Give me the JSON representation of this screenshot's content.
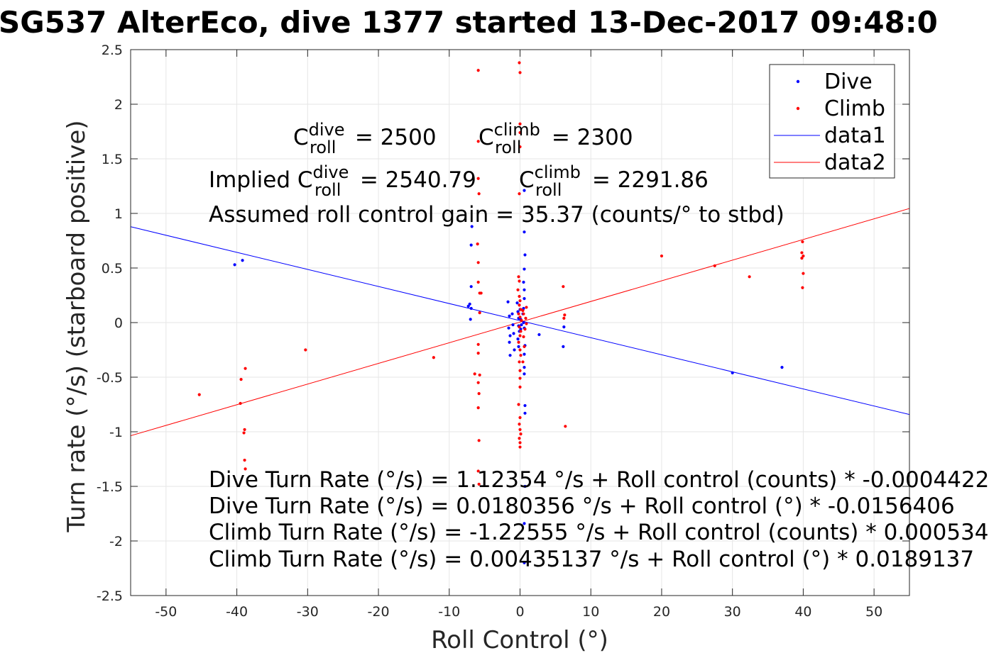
{
  "chart_data": {
    "type": "scatter",
    "title": "SG537 AlterEco, dive 1377 started 13-Dec-2017 09:48:0",
    "xlabel": "Roll Control (°)",
    "ylabel": "Turn rate (°/s) (starboard positive)",
    "xlim": [
      -55,
      55
    ],
    "ylim": [
      -2.5,
      2.5
    ],
    "xticks": [
      -50,
      -40,
      -30,
      -20,
      -10,
      0,
      10,
      20,
      30,
      40,
      50
    ],
    "xtick_labels": [
      "-50",
      "-40",
      "-30",
      "-20",
      "-10",
      "0",
      "10",
      "20",
      "30",
      "40",
      "50"
    ],
    "yticks": [
      -2.5,
      -2,
      -1.5,
      -1,
      -0.5,
      0,
      0.5,
      1,
      1.5,
      2,
      2.5
    ],
    "ytick_labels": [
      "-2.5",
      "-2",
      "-1.5",
      "-1",
      "-0.5",
      "0",
      "0.5",
      "1",
      "1.5",
      "2",
      "2.5"
    ],
    "grid": true,
    "legend": {
      "placement": "top-right",
      "entries": [
        {
          "label": "Dive",
          "marker": "dot",
          "color": "#0000ff"
        },
        {
          "label": "Climb",
          "marker": "dot",
          "color": "#ff0000"
        },
        {
          "label": "data1",
          "marker": "line",
          "color": "#0000ff"
        },
        {
          "label": "data2",
          "marker": "line",
          "color": "#ff0000"
        }
      ]
    },
    "colors": {
      "dive": "#0000ff",
      "climb": "#ff0000",
      "grid": "#e6e6e6",
      "axis": "#262626"
    },
    "series": [
      {
        "name": "Dive",
        "type": "scatter",
        "points": [
          [
            -40.3,
            0.53
          ],
          [
            -39.2,
            0.57
          ],
          [
            -6.8,
            0.88
          ],
          [
            -6.9,
            0.71
          ],
          [
            -6.9,
            0.33
          ],
          [
            -7.1,
            0.17
          ],
          [
            -7.3,
            0.15
          ],
          [
            -6.9,
            0.13
          ],
          [
            -7.0,
            0.03
          ],
          [
            -1.7,
            0.19
          ],
          [
            -1.5,
            0.06
          ],
          [
            -1.6,
            -0.05
          ],
          [
            -1.4,
            -0.12
          ],
          [
            -1.5,
            -0.18
          ],
          [
            -1.4,
            -0.3
          ],
          [
            -1.1,
            0.08
          ],
          [
            -1.0,
            -0.02
          ],
          [
            -0.9,
            -0.1
          ],
          [
            -0.8,
            -0.25
          ],
          [
            -0.4,
            0.18
          ],
          [
            -0.3,
            0.1
          ],
          [
            -0.2,
            0.04
          ],
          [
            -0.2,
            -0.03
          ],
          [
            -0.1,
            -0.08
          ],
          [
            -0.3,
            -0.15
          ],
          [
            -0.2,
            -0.22
          ],
          [
            0.0,
            0.12
          ],
          [
            0.1,
            0.03
          ],
          [
            0.2,
            -0.02
          ],
          [
            0.1,
            -0.06
          ],
          [
            0.4,
            0.08
          ],
          [
            0.5,
            0.0
          ],
          [
            0.6,
            -0.05
          ],
          [
            0.5,
            0.13
          ],
          [
            0.6,
            1.21
          ],
          [
            0.6,
            0.83
          ],
          [
            0.7,
            0.62
          ],
          [
            0.6,
            0.49
          ],
          [
            0.5,
            0.37
          ],
          [
            0.6,
            0.3
          ],
          [
            0.6,
            0.22
          ],
          [
            0.7,
            -0.21
          ],
          [
            0.6,
            -0.29
          ],
          [
            0.6,
            -0.41
          ],
          [
            0.6,
            -0.47
          ],
          [
            0.7,
            -0.76
          ],
          [
            0.7,
            -0.83
          ],
          [
            0.7,
            -1.5
          ],
          [
            0.6,
            -1.84
          ],
          [
            0.6,
            -2.2
          ],
          [
            2.7,
            -0.11
          ],
          [
            6.2,
            -0.04
          ],
          [
            6.1,
            -0.22
          ],
          [
            30.0,
            -0.46
          ],
          [
            37.0,
            -0.41
          ]
        ]
      },
      {
        "name": "Climb",
        "type": "scatter",
        "points": [
          [
            -45.3,
            -0.66
          ],
          [
            -39.4,
            -0.52
          ],
          [
            -38.8,
            -0.42
          ],
          [
            -39.5,
            -0.74
          ],
          [
            -38.9,
            -0.98
          ],
          [
            -39.0,
            -1.01
          ],
          [
            -38.9,
            -1.26
          ],
          [
            -38.8,
            -1.34
          ],
          [
            -30.3,
            -0.25
          ],
          [
            -12.2,
            -0.32
          ],
          [
            -6.4,
            -0.47
          ],
          [
            -5.9,
            2.31
          ],
          [
            -5.9,
            1.66
          ],
          [
            -5.9,
            1.32
          ],
          [
            -5.8,
            1.18
          ],
          [
            -6.0,
            0.72
          ],
          [
            -5.9,
            0.55
          ],
          [
            -5.9,
            0.37
          ],
          [
            -5.7,
            0.27
          ],
          [
            -5.5,
            0.27
          ],
          [
            -5.7,
            0.09
          ],
          [
            -5.9,
            -0.2
          ],
          [
            -5.9,
            -0.28
          ],
          [
            -5.7,
            -0.48
          ],
          [
            -5.9,
            -0.55
          ],
          [
            -5.8,
            -0.65
          ],
          [
            -5.9,
            -0.78
          ],
          [
            -5.8,
            -1.08
          ],
          [
            -5.9,
            -1.36
          ],
          [
            -5.8,
            -1.48
          ],
          [
            -0.1,
            2.38
          ],
          [
            0.0,
            2.29
          ],
          [
            0.0,
            1.82
          ],
          [
            0.0,
            1.74
          ],
          [
            0.0,
            1.61
          ],
          [
            -0.1,
            1.18
          ],
          [
            -0.2,
            0.42
          ],
          [
            -0.1,
            0.38
          ],
          [
            -0.3,
            0.3
          ],
          [
            -0.1,
            0.24
          ],
          [
            0.0,
            0.2
          ],
          [
            -0.1,
            0.16
          ],
          [
            0.1,
            0.12
          ],
          [
            -0.2,
            0.08
          ],
          [
            0.0,
            0.05
          ],
          [
            0.2,
            0.02
          ],
          [
            -0.1,
            -0.04
          ],
          [
            0.1,
            -0.08
          ],
          [
            0.0,
            -0.12
          ],
          [
            -0.2,
            -0.18
          ],
          [
            0.0,
            -0.25
          ],
          [
            0.1,
            -0.3
          ],
          [
            -0.1,
            -0.36
          ],
          [
            0.0,
            -0.44
          ],
          [
            0.0,
            -0.51
          ],
          [
            0.0,
            -0.59
          ],
          [
            -0.2,
            -0.75
          ],
          [
            0.0,
            -0.87
          ],
          [
            -0.1,
            -0.93
          ],
          [
            0.0,
            -0.98
          ],
          [
            0.1,
            -1.02
          ],
          [
            -0.1,
            -1.06
          ],
          [
            0.0,
            -1.1
          ],
          [
            0.0,
            -1.14
          ],
          [
            0.4,
            0.11
          ],
          [
            0.5,
            0.08
          ],
          [
            0.7,
            -0.06
          ],
          [
            0.5,
            -0.13
          ],
          [
            0.6,
            -0.22
          ],
          [
            0.4,
            -0.36
          ],
          [
            0.9,
            0.14
          ],
          [
            0.8,
            0.04
          ],
          [
            0.9,
            -0.01
          ],
          [
            6.1,
            0.33
          ],
          [
            6.3,
            0.07
          ],
          [
            6.2,
            0.04
          ],
          [
            6.4,
            -0.95
          ],
          [
            20.0,
            0.61
          ],
          [
            27.5,
            0.52
          ],
          [
            32.4,
            0.42
          ],
          [
            39.9,
            0.74
          ],
          [
            39.8,
            0.64
          ],
          [
            40.0,
            0.61
          ],
          [
            39.8,
            0.59
          ],
          [
            40.0,
            0.45
          ],
          [
            39.9,
            0.32
          ]
        ]
      },
      {
        "name": "data1",
        "type": "line",
        "x": [
          -55,
          55
        ],
        "y": [
          0.878,
          -0.842
        ]
      },
      {
        "name": "data2",
        "type": "line",
        "x": [
          -55,
          55
        ],
        "y": [
          -1.036,
          1.045
        ]
      }
    ],
    "annotations": {
      "c_dive_prefix": "C",
      "c_dive_super": "dive",
      "c_dive_sub": "roll",
      "c_dive_value": " = 2500",
      "c_climb_prefix": "C",
      "c_climb_super": "climb",
      "c_climb_sub": "roll",
      "c_climb_value": " = 2300",
      "implied_prefix": "Implied C",
      "implied_dive_super": "dive",
      "implied_dive_sub": "roll",
      "implied_dive_value": " = 2540.79",
      "implied_climb_prefix": "C",
      "implied_climb_super": "climb",
      "implied_climb_sub": "roll",
      "implied_climb_value": " = 2291.86",
      "gain": "Assumed roll control gain = 35.37 (counts/° to stbd)",
      "eq1": "Dive Turn Rate (°/s) = 1.12354 °/s + Roll control (counts) * -0.0004422",
      "eq2": "Dive Turn Rate (°/s) = 0.0180356 °/s + Roll control (°) * -0.0156406",
      "eq3": "Climb Turn Rate (°/s) = -1.22555 °/s + Roll control (counts) * 0.000534",
      "eq4": "Climb Turn Rate (°/s) = 0.00435137 °/s + Roll control (°) * 0.0189137"
    }
  }
}
